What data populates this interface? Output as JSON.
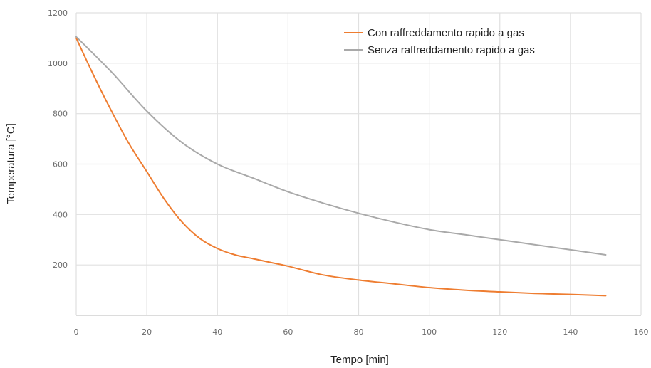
{
  "chart_data": {
    "type": "line",
    "title": "",
    "xlabel": "Tempo [min]",
    "ylabel": "Temperatura [°C]",
    "xlim": [
      0,
      160
    ],
    "ylim": [
      0,
      1200
    ],
    "xticks": [
      0,
      20,
      40,
      60,
      80,
      100,
      120,
      140,
      160
    ],
    "yticks": [
      200,
      400,
      600,
      800,
      1000,
      1200
    ],
    "grid": true,
    "legend_position": "top-right",
    "series": [
      {
        "name": "Con raffreddamento rapido a gas",
        "color": "#ee7d31",
        "x": [
          0,
          5,
          10,
          15,
          20,
          25,
          30,
          35,
          40,
          45,
          50,
          55,
          60,
          70,
          80,
          90,
          100,
          110,
          120,
          130,
          140,
          150
        ],
        "y": [
          1100,
          950,
          810,
          680,
          570,
          460,
          370,
          305,
          265,
          240,
          225,
          210,
          195,
          160,
          140,
          125,
          110,
          100,
          93,
          87,
          83,
          78
        ]
      },
      {
        "name": "Senza raffreddamento rapido a gas",
        "color": "#a9a9a9",
        "x": [
          0,
          10,
          20,
          30,
          40,
          50,
          60,
          70,
          80,
          90,
          100,
          110,
          120,
          130,
          140,
          150
        ],
        "y": [
          1105,
          965,
          810,
          685,
          600,
          545,
          490,
          445,
          405,
          370,
          340,
          320,
          300,
          280,
          260,
          240
        ]
      }
    ]
  }
}
